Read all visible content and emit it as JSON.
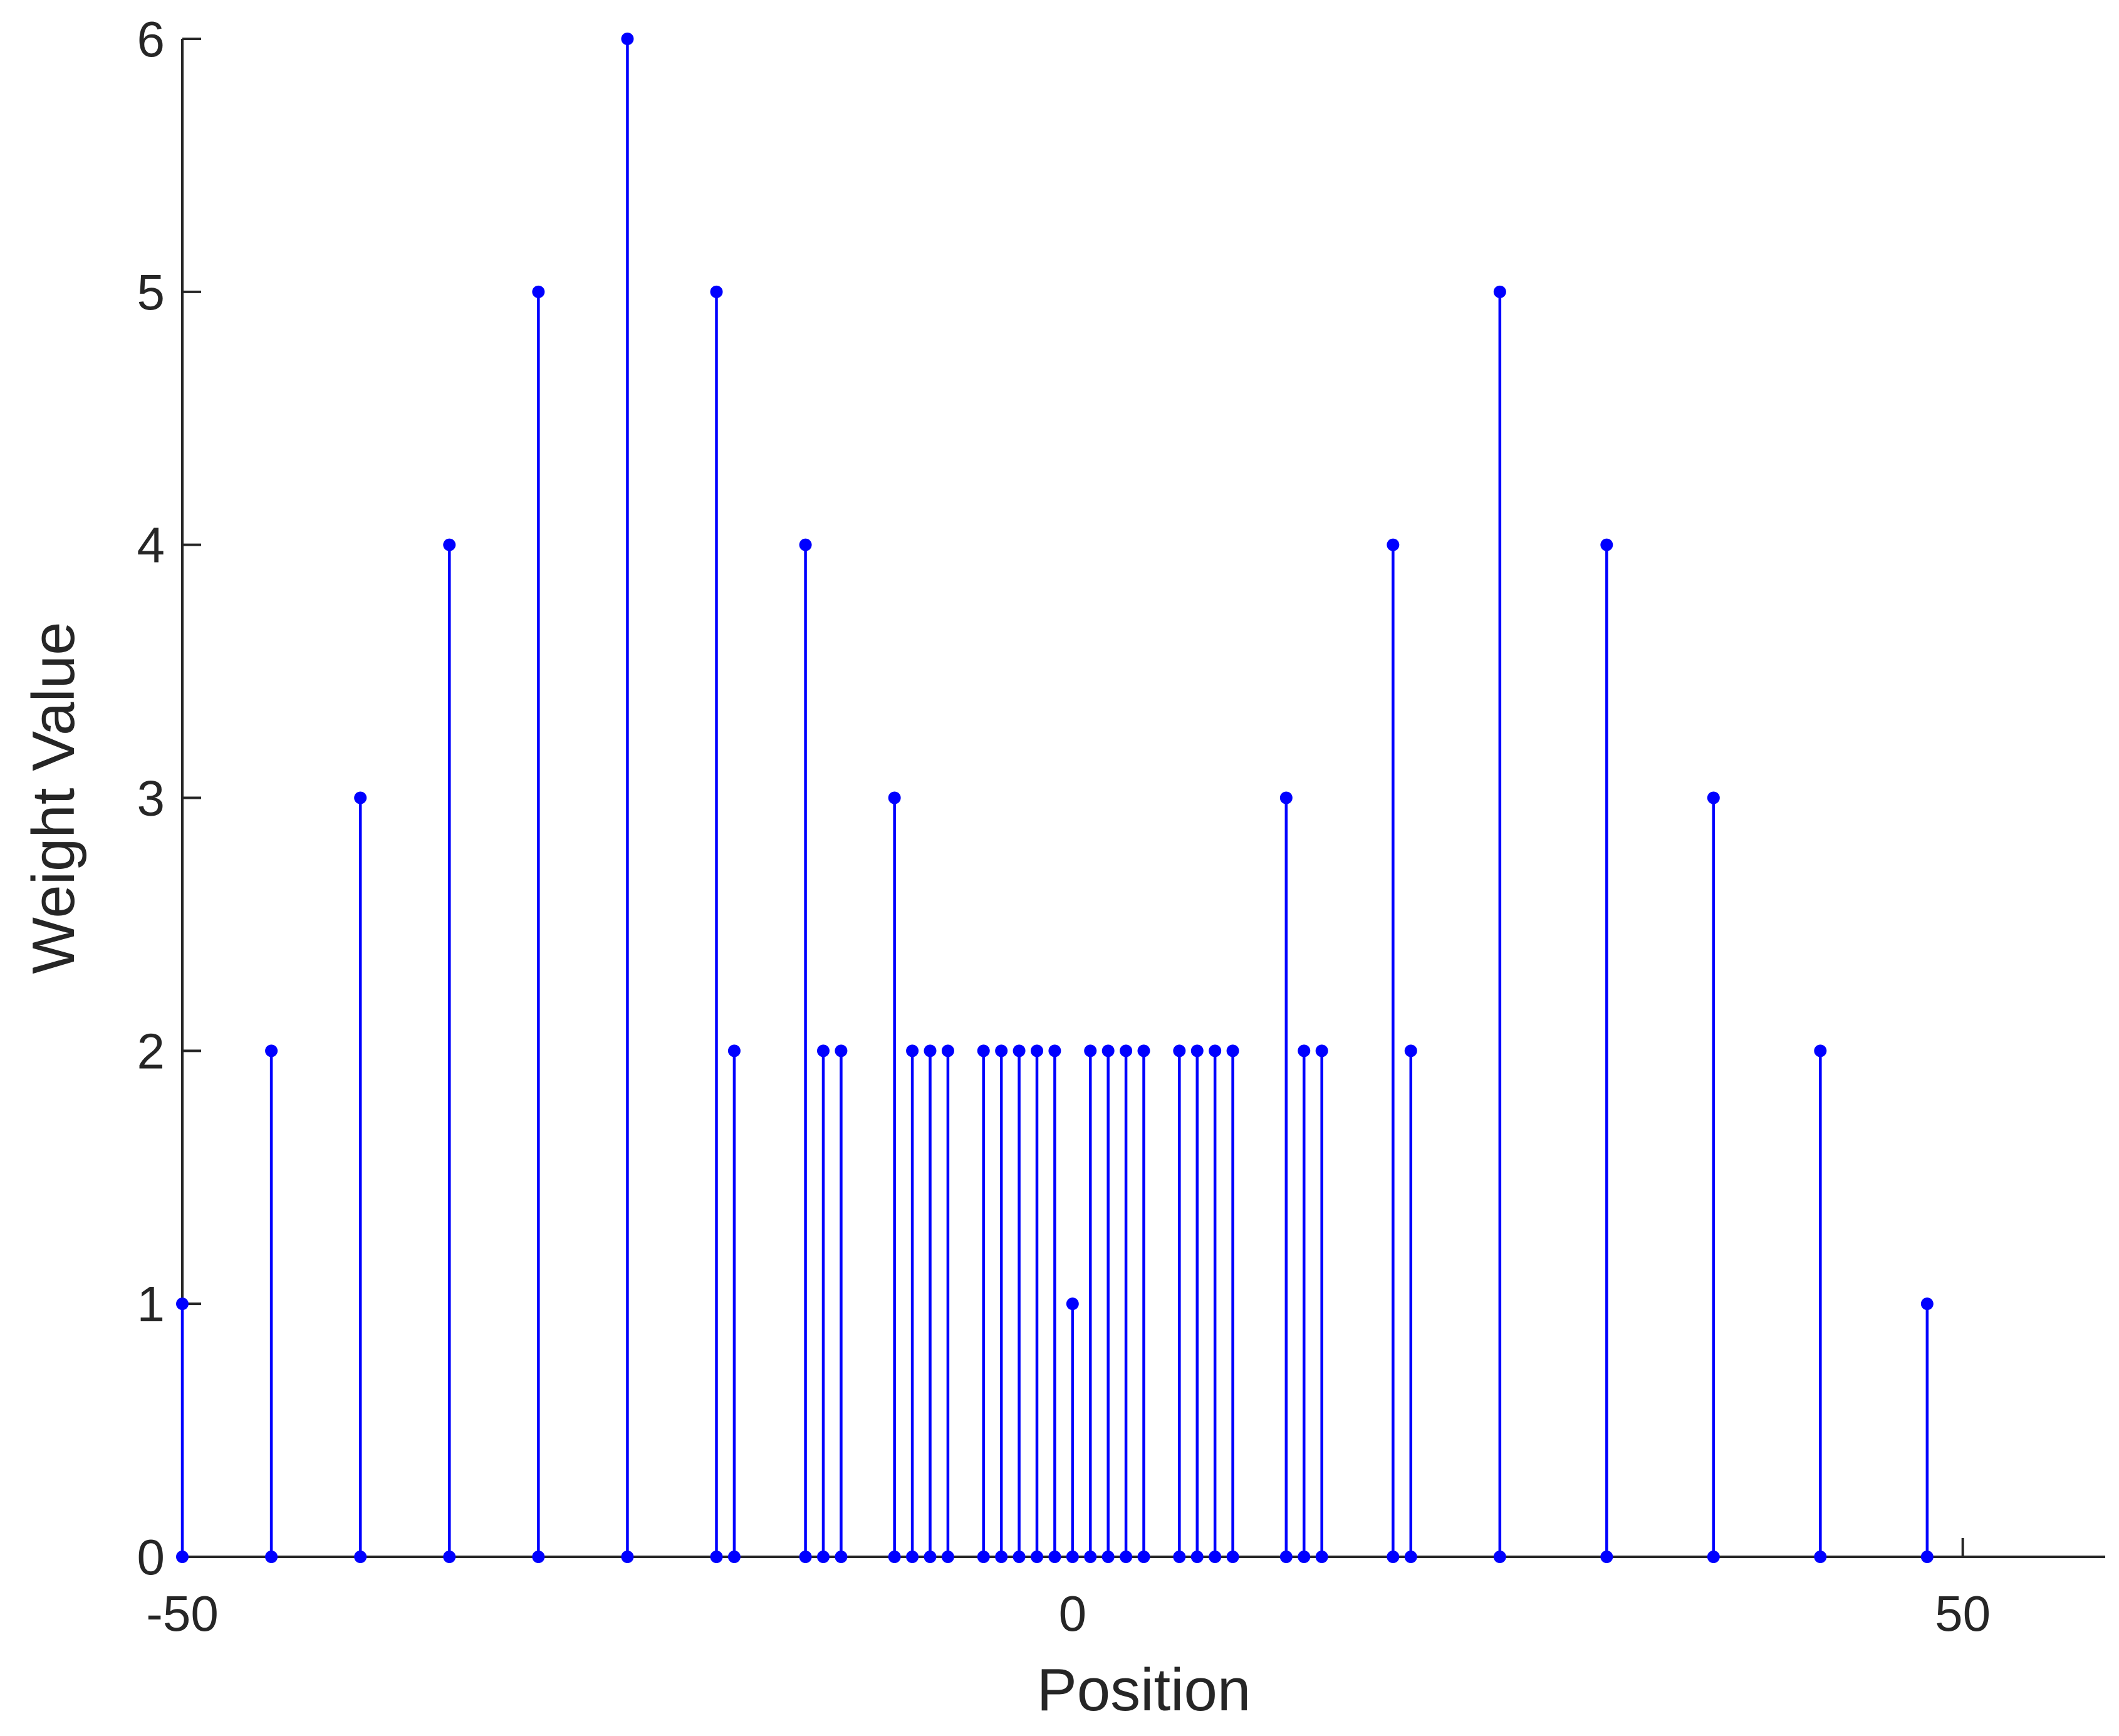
{
  "chart_data": {
    "type": "stem",
    "title": "",
    "xlabel": "Position",
    "ylabel": "Weight Value",
    "xlim": [
      -50,
      58
    ],
    "ylim": [
      0,
      6
    ],
    "xticks": [
      -50,
      0,
      50
    ],
    "xtick_labels": [
      "-50",
      "0",
      "50"
    ],
    "yticks": [
      0,
      1,
      2,
      3,
      4,
      5,
      6
    ],
    "ytick_labels": [
      "0",
      "1",
      "2",
      "3",
      "4",
      "5",
      "6"
    ],
    "grid": false,
    "colors": {
      "series": "#0000ff",
      "axis": "#262626"
    },
    "series": [
      {
        "x": [
          -50,
          -45,
          -40,
          -35,
          -30,
          -25,
          -20,
          -19,
          -15,
          -14,
          -13,
          -10,
          -9,
          -8,
          -7,
          -5,
          -4,
          -3,
          -2,
          -1,
          0,
          1,
          2,
          3,
          4,
          6,
          7,
          8,
          9,
          12,
          13,
          14,
          18,
          19,
          24,
          30,
          36,
          42,
          48
        ],
        "y": [
          1,
          2,
          3,
          4,
          5,
          6,
          5,
          2,
          4,
          2,
          2,
          3,
          2,
          2,
          2,
          2,
          2,
          2,
          2,
          2,
          1,
          2,
          2,
          2,
          2,
          2,
          2,
          2,
          2,
          3,
          2,
          2,
          4,
          2,
          5,
          4,
          3,
          2,
          1
        ]
      }
    ]
  }
}
